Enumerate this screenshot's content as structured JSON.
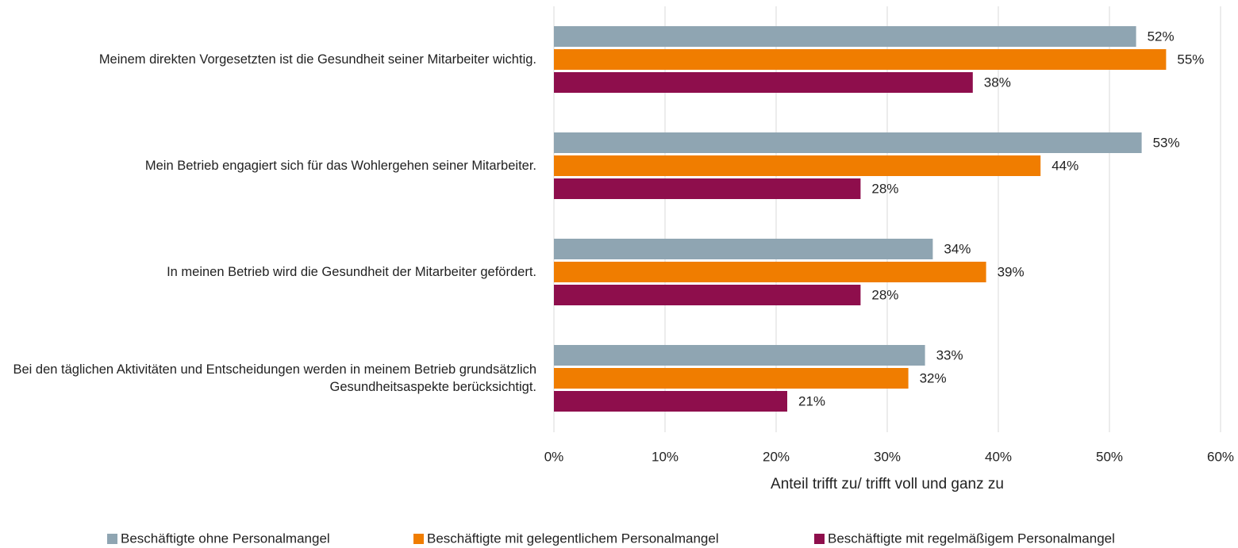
{
  "chart_data": {
    "type": "bar",
    "orientation": "horizontal",
    "x_label": "Anteil trifft zu/ trifft voll und ganz zu",
    "categories": [
      "Meinem direkten Vorgesetzten ist die Gesundheit seiner Mitarbeiter wichtig.",
      "Mein Betrieb engagiert sich für das Wohlergehen seiner Mitarbeiter.",
      "In meinen Betrieb wird die Gesundheit der Mitarbeiter gefördert.",
      "Bei den täglichen Aktivitäten und Entscheidungen werden in meinem Betrieb grundsätzlich Gesundheitsaspekte berücksichtigt."
    ],
    "series": [
      {
        "name": "Beschäftigte ohne Personalmangel",
        "color": "#8fa5b2",
        "values": [
          52.4,
          52.9,
          34.1,
          33.4
        ],
        "value_labels": [
          "52%",
          "53%",
          "34%",
          "33%"
        ]
      },
      {
        "name": "Beschäftigte mit gelegentlichem Personalmangel",
        "color": "#f07d00",
        "values": [
          55.1,
          43.8,
          38.9,
          31.9
        ],
        "value_labels": [
          "55%",
          "44%",
          "39%",
          "32%"
        ]
      },
      {
        "name": "Beschäftigte mit regelmäßigem Personalmangel",
        "color": "#8e0e4c",
        "values": [
          37.7,
          27.6,
          27.6,
          21.0
        ],
        "value_labels": [
          "38%",
          "28%",
          "28%",
          "21%"
        ]
      }
    ],
    "xlim": [
      0,
      60
    ],
    "xticks": [
      {
        "value": 0,
        "label": "0%"
      },
      {
        "value": 10,
        "label": "10%"
      },
      {
        "value": 20,
        "label": "20%"
      },
      {
        "value": 30,
        "label": "30%"
      },
      {
        "value": 40,
        "label": "40%"
      },
      {
        "value": 50,
        "label": "50%"
      },
      {
        "value": 60,
        "label": "60%"
      }
    ],
    "grid": true,
    "legend": "bottom"
  }
}
